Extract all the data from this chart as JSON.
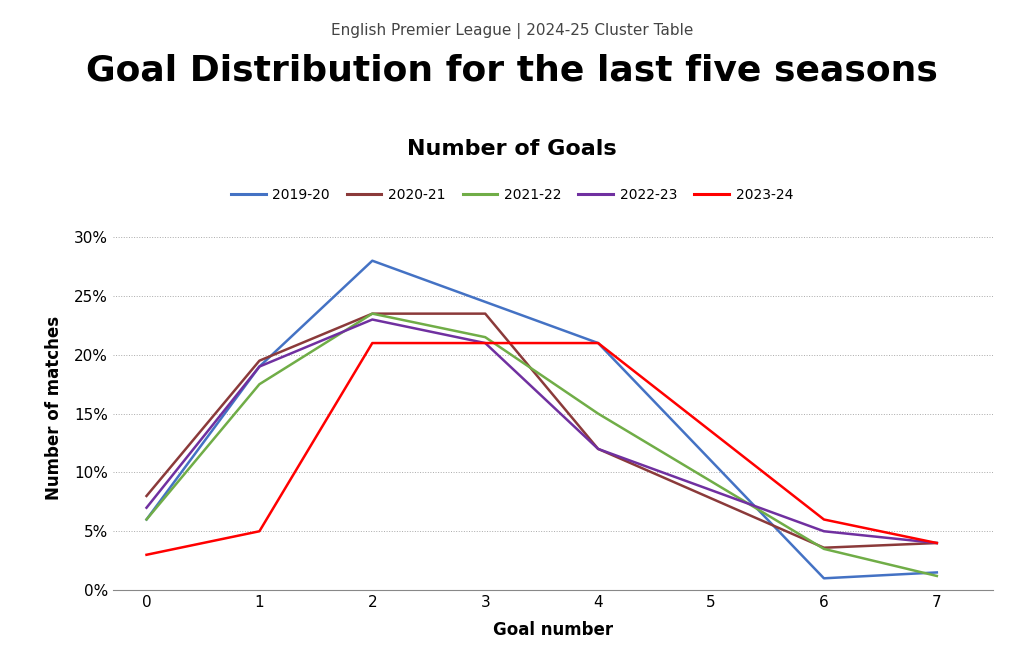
{
  "subtitle": "English Premier League | 2024-25 Cluster Table",
  "title": "Goal Distribution for the last five seasons",
  "chart_title": "Number of Goals",
  "xlabel": "Goal number",
  "ylabel": "Number of matches",
  "x": [
    0,
    1,
    2,
    3,
    4,
    5,
    6,
    7
  ],
  "seasons": {
    "2019-20": {
      "color": "#4472C4",
      "values": [
        0.06,
        0.19,
        0.28,
        0.245,
        0.21,
        null,
        0.01,
        0.015
      ]
    },
    "2020-21": {
      "color": "#8B3A3A",
      "values": [
        0.08,
        0.195,
        0.235,
        0.235,
        0.12,
        null,
        0.036,
        0.04
      ]
    },
    "2021-22": {
      "color": "#70AD47",
      "values": [
        0.06,
        0.175,
        0.235,
        0.215,
        0.15,
        null,
        0.035,
        0.012
      ]
    },
    "2022-23": {
      "color": "#7030A0",
      "values": [
        0.07,
        0.19,
        0.23,
        0.21,
        0.12,
        null,
        0.05,
        0.04
      ]
    },
    "2023-24": {
      "color": "#FF0000",
      "values": [
        0.03,
        0.05,
        0.21,
        0.21,
        0.21,
        null,
        0.06,
        0.04
      ]
    }
  },
  "ylim": [
    0,
    0.31
  ],
  "yticks": [
    0,
    0.05,
    0.1,
    0.15,
    0.2,
    0.25,
    0.3
  ],
  "xticks": [
    0,
    1,
    2,
    3,
    4,
    5,
    6,
    7
  ],
  "background_color": "#ffffff",
  "grid_color": "#aaaaaa",
  "linewidth": 1.8,
  "subtitle_fontsize": 11,
  "title_fontsize": 26,
  "chart_title_fontsize": 16,
  "legend_fontsize": 10,
  "axis_label_fontsize": 12,
  "tick_fontsize": 11
}
